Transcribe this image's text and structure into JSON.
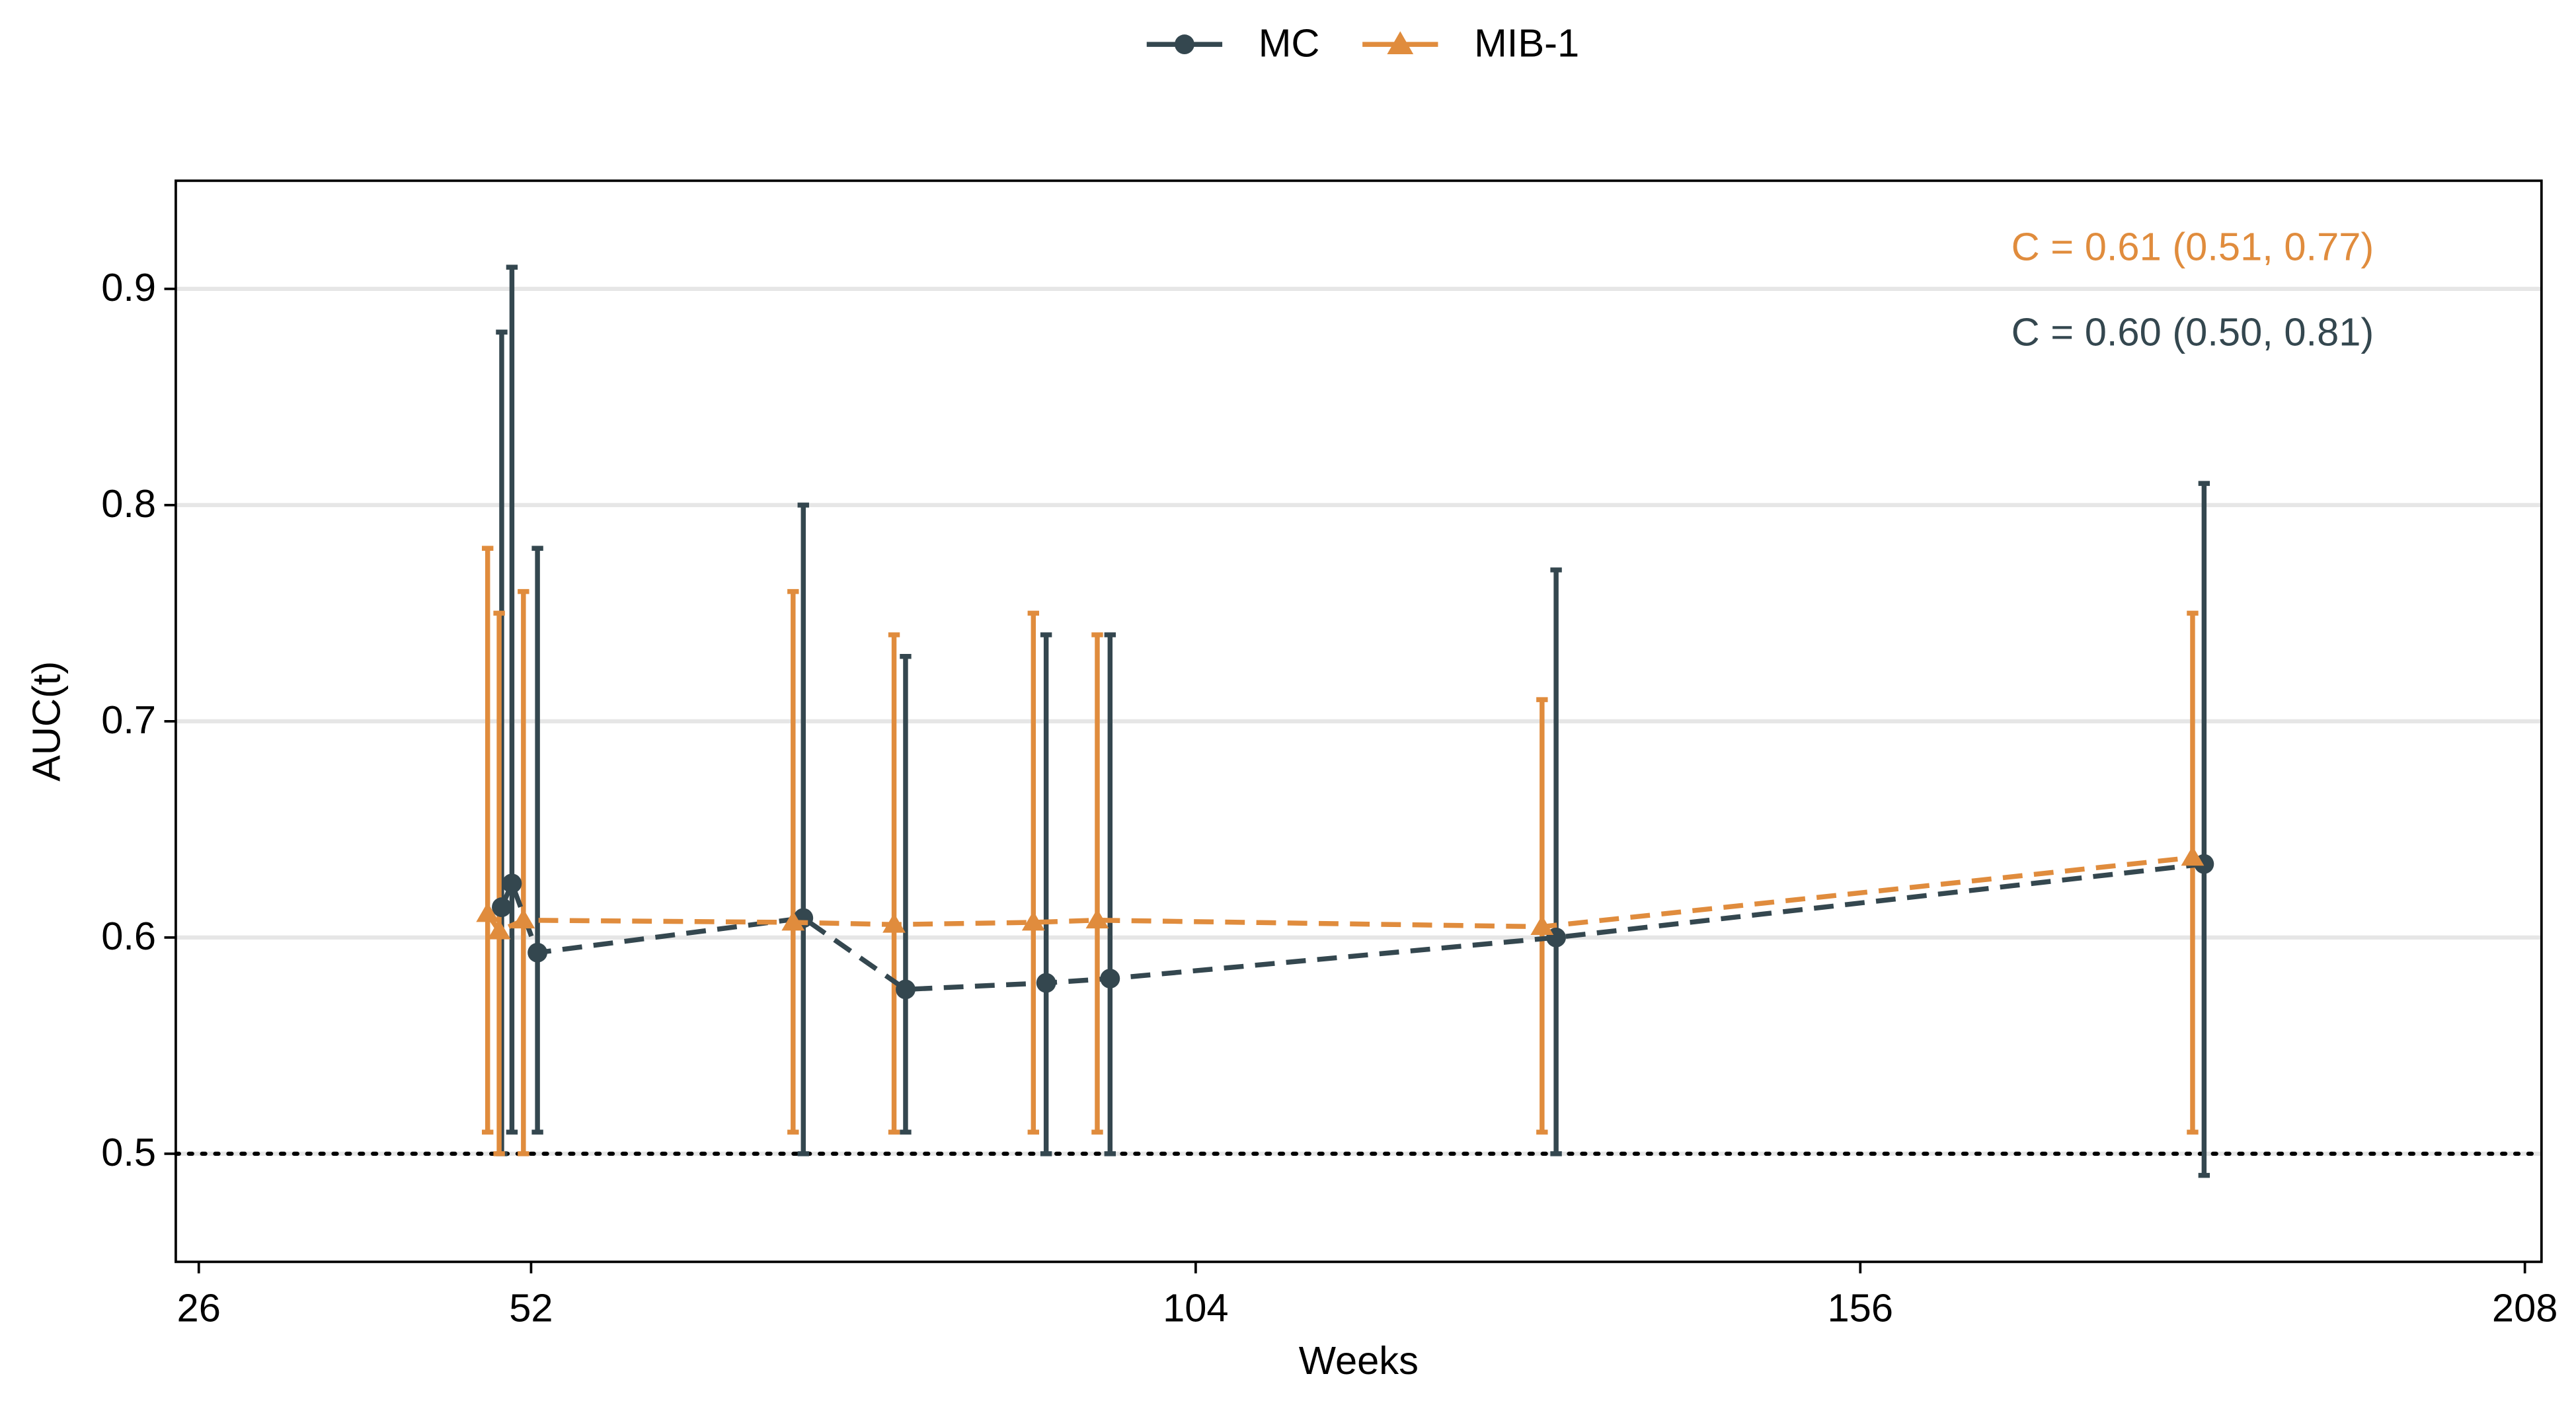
{
  "chart_data": {
    "type": "line",
    "x_label": "Weeks",
    "y_label": "AUC(t)",
    "xlim": [
      24.2,
      209.3
    ],
    "xticks": [
      26,
      52,
      104,
      156,
      208
    ],
    "ylim": [
      0.45,
      0.95
    ],
    "yticks": [
      0.5,
      0.6,
      0.7,
      0.8,
      0.9
    ],
    "grid": true,
    "legend": "top",
    "reference_line": 0.5,
    "series": [
      {
        "name": "MC",
        "color": "#34474f",
        "marker": "circle",
        "x": [
          49.7,
          50.5,
          52.5,
          73.3,
          81.3,
          92.3,
          97.3,
          132.2,
          182.9
        ],
        "values": [
          0.614,
          0.625,
          0.593,
          0.609,
          0.576,
          0.579,
          0.581,
          0.6,
          0.634
        ],
        "lower": [
          0.5,
          0.51,
          0.51,
          0.5,
          0.51,
          0.5,
          0.5,
          0.5,
          0.49
        ],
        "upper": [
          0.88,
          0.91,
          0.78,
          0.8,
          0.73,
          0.74,
          0.74,
          0.77,
          0.81
        ]
      },
      {
        "name": "MIB-1",
        "color": "#e08c3d",
        "marker": "triangle",
        "x": [
          48.6,
          49.5,
          51.4,
          72.5,
          80.4,
          91.3,
          96.3,
          131.1,
          182.0
        ],
        "values": [
          0.611,
          0.603,
          0.608,
          0.607,
          0.606,
          0.607,
          0.608,
          0.605,
          0.637
        ],
        "lower": [
          0.51,
          0.5,
          0.5,
          0.51,
          0.51,
          0.51,
          0.51,
          0.51,
          0.51
        ],
        "upper": [
          0.78,
          0.75,
          0.76,
          0.76,
          0.74,
          0.75,
          0.74,
          0.71,
          0.75
        ]
      }
    ],
    "annotations": [
      {
        "text": "C = 0.61 (0.51, 0.77)",
        "color": "#e08c3d"
      },
      {
        "text": "C = 0.60 (0.50, 0.81)",
        "color": "#34474f"
      }
    ]
  }
}
